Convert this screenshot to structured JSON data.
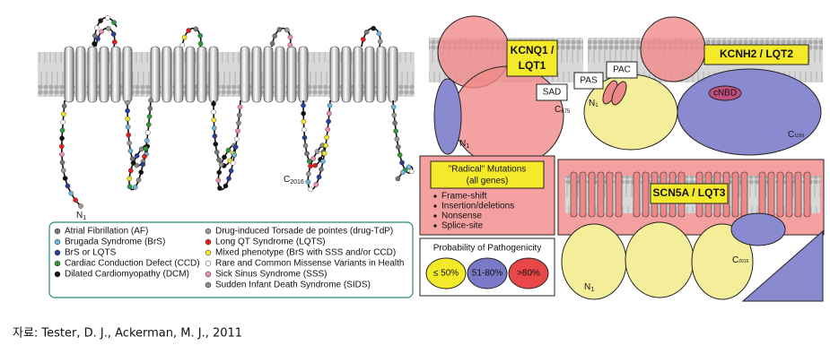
{
  "left_panel": {
    "c_terminus": {
      "base": "C",
      "sub": "2016"
    },
    "n_terminus": {
      "base": "N",
      "sub": "1"
    },
    "legend": [
      {
        "label": "Atrial Fibrillation (AF)",
        "color": "#777777"
      },
      {
        "label": "Brugada Syndrome (BrS)",
        "color": "#6fb7e0"
      },
      {
        "label": "BrS or LQTS",
        "color": "#2a3f9a"
      },
      {
        "label": "Cardiac Conduction Defect (CCD)",
        "color": "#2f9a3c"
      },
      {
        "label": "Dilated Cardiomyopathy (DCM)",
        "color": "#111111"
      },
      {
        "label": "Drug-induced Torsade de pointes (drug-TdP)",
        "color": "#9a9a9a"
      },
      {
        "label": "Long QT Syndrome (LQTS)",
        "color": "#e02020"
      },
      {
        "label": "Mixed phenotype (BrS with SSS and/or CCD)",
        "color": "#f2e22a"
      },
      {
        "label": "Rare and Common Missense Variants in Health",
        "color": "#ffffff"
      },
      {
        "label": "Sick Sinus Syndrome (SSS)",
        "color": "#f08cb4"
      },
      {
        "label": "Sudden Infant Death Syndrome (SIDS)",
        "color": "#8a8a8a"
      }
    ]
  },
  "right_panel": {
    "kcnq1": {
      "label": [
        "KCNQ1 /",
        "LQT1"
      ],
      "sad": "SAD",
      "c_terminus": {
        "base": "C",
        "sub": "675"
      },
      "n_terminus": {
        "base": "N",
        "sub": "1"
      }
    },
    "kcnh2": {
      "label": "KCNH2 / LQT2",
      "pas": "PAS",
      "pac": "PAC",
      "cnbd": "cNBD",
      "n_terminus": {
        "base": "N",
        "sub": "1"
      },
      "c_terminus": {
        "base": "C",
        "sub": "1159"
      }
    },
    "radical": {
      "title": "\"Radical\" Mutations",
      "subtitle": "(all genes)",
      "items": [
        "Frame-shift",
        "Insertion/deletions",
        "Nonsense",
        "Splice-site"
      ]
    },
    "scn5a": {
      "label": "SCN5A / LQT3",
      "c_terminus": {
        "base": "C",
        "sub": "2016"
      },
      "n_terminus": {
        "base": "N",
        "sub": "1"
      }
    },
    "probability": {
      "title": "Probability of Pathogenicity",
      "levels": [
        "≤ 50%",
        "51-80%",
        ">80%"
      ]
    }
  },
  "caption": "자료: Tester, D. J., Ackerman, M. J., 2011"
}
